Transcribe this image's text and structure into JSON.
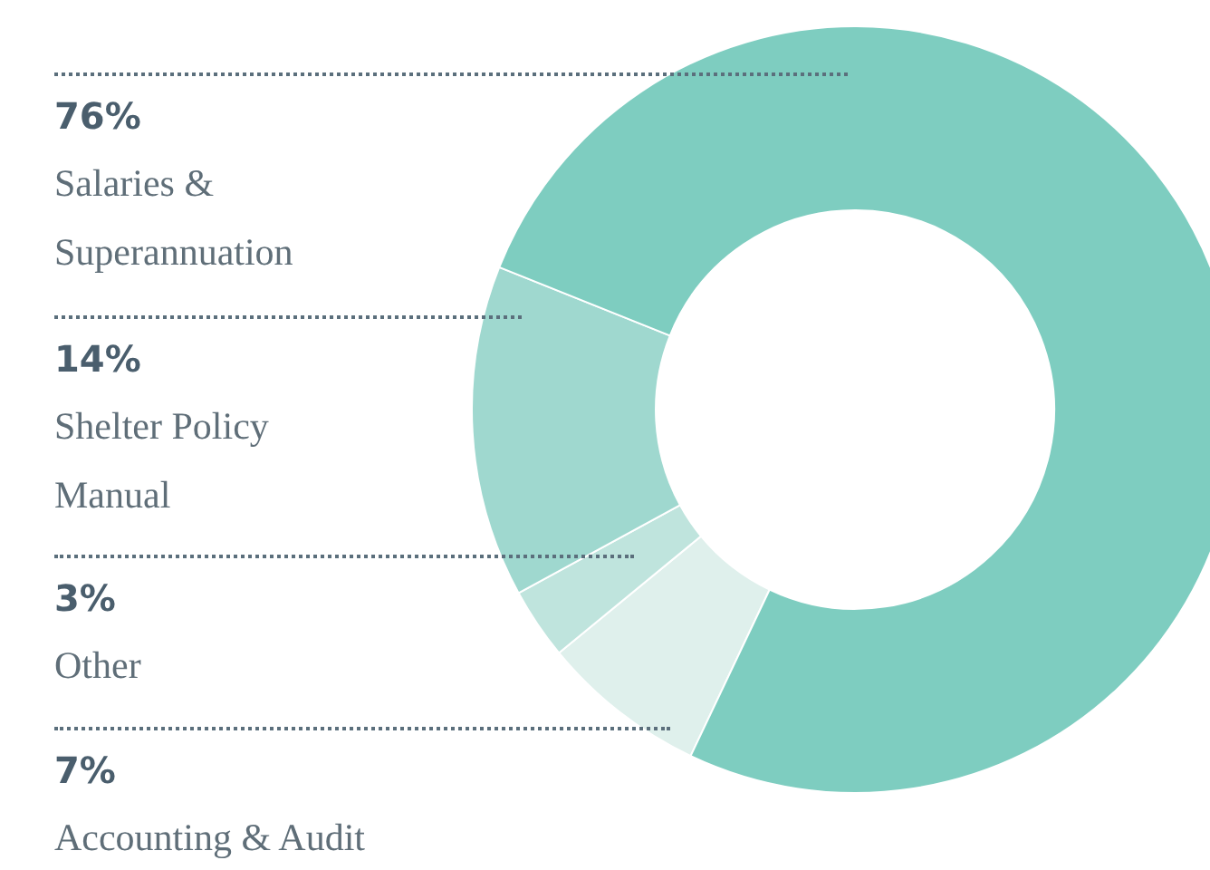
{
  "chart_data": {
    "type": "donut",
    "categories": [
      "Salaries & Superannuation",
      "Shelter Policy Manual",
      "Other",
      "Accounting & Audit"
    ],
    "values": [
      76,
      14,
      3,
      7
    ],
    "value_labels": [
      "76%",
      "14%",
      "3%",
      "7%"
    ],
    "colors": [
      "#7ecdc0",
      "#9fd8cf",
      "#bfe4dd",
      "#dff0ec"
    ],
    "legend": false
  }
}
